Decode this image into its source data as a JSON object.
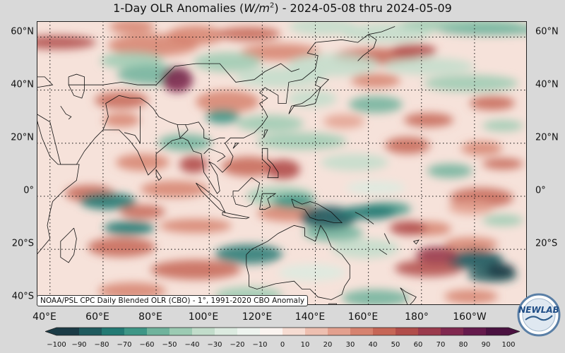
{
  "title_prefix": "1-Day OLR Anomalies (",
  "title_unit_main": "W/m",
  "title_unit_exp": "2",
  "title_suffix": ") - 2024-05-08 thru 2024-05-09",
  "lat_labels": [
    "60°N",
    "40°N",
    "20°N",
    "0°",
    "20°S",
    "40°S"
  ],
  "lon_labels": [
    "40°E",
    "60°E",
    "80°E",
    "100°E",
    "120°E",
    "140°E",
    "160°E",
    "180°",
    "160°W",
    "14"
  ],
  "note": "NOAA/PSL CPC Daily Blended OLR (CBO) - 1°, 1991-2020 CBO Anomaly",
  "colorbar": {
    "ticks": [
      "−100",
      "−90",
      "−80",
      "−70",
      "−60",
      "−50",
      "−40",
      "−30",
      "−20",
      "−10",
      "0",
      "10",
      "20",
      "30",
      "40",
      "50",
      "60",
      "70",
      "80",
      "90",
      "100"
    ],
    "colors": [
      "#1b3b46",
      "#1f5a5e",
      "#237a74",
      "#3e9686",
      "#6fb39c",
      "#9ccbb3",
      "#c2ddcb",
      "#dcebe0",
      "#eef4ef",
      "#fbf4f0",
      "#f6dcd2",
      "#eebfb0",
      "#e3a08e",
      "#d6826f",
      "#c66656",
      "#b14d4a",
      "#9a3a4c",
      "#80284f",
      "#651a4c",
      "#4a1140"
    ]
  },
  "logo_text": "NEWLAB"
}
